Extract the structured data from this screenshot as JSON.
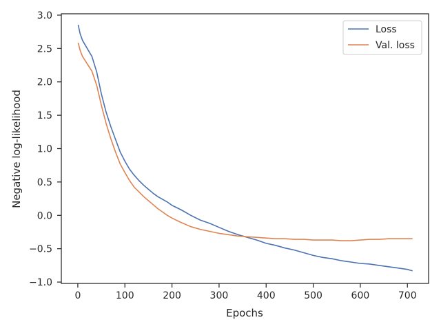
{
  "chart_data": {
    "type": "line",
    "xlabel": "Epochs",
    "ylabel": "Negative log-likelihood",
    "xlim": [
      -35,
      745
    ],
    "ylim": [
      -1.02,
      3.02
    ],
    "xticks": [
      0,
      100,
      200,
      300,
      400,
      500,
      600,
      700
    ],
    "yticks": [
      -1.0,
      -0.5,
      0.0,
      0.5,
      1.0,
      1.5,
      2.0,
      2.5,
      3.0
    ],
    "xtick_labels": [
      "0",
      "100",
      "200",
      "300",
      "400",
      "500",
      "600",
      "700"
    ],
    "ytick_labels": [
      "−1.0",
      "−0.5",
      "0.0",
      "0.5",
      "1.0",
      "1.5",
      "2.0",
      "2.5",
      "3.0"
    ],
    "grid": false,
    "legend_position": "top-right",
    "series": [
      {
        "name": "Loss",
        "color": "#4c72b0",
        "x": [
          1,
          5,
          10,
          20,
          30,
          40,
          50,
          60,
          70,
          80,
          90,
          100,
          110,
          120,
          130,
          140,
          150,
          160,
          170,
          180,
          190,
          200,
          220,
          240,
          260,
          280,
          300,
          320,
          340,
          360,
          380,
          400,
          420,
          440,
          460,
          480,
          500,
          520,
          540,
          560,
          580,
          600,
          620,
          640,
          660,
          680,
          700,
          710
        ],
        "y": [
          2.85,
          2.72,
          2.62,
          2.5,
          2.38,
          2.15,
          1.82,
          1.55,
          1.33,
          1.14,
          0.95,
          0.81,
          0.69,
          0.6,
          0.52,
          0.45,
          0.39,
          0.33,
          0.28,
          0.24,
          0.2,
          0.15,
          0.08,
          0.0,
          -0.07,
          -0.12,
          -0.18,
          -0.24,
          -0.29,
          -0.33,
          -0.37,
          -0.42,
          -0.45,
          -0.49,
          -0.52,
          -0.56,
          -0.6,
          -0.63,
          -0.65,
          -0.68,
          -0.7,
          -0.72,
          -0.73,
          -0.75,
          -0.77,
          -0.79,
          -0.81,
          -0.83
        ]
      },
      {
        "name": "Val. loss",
        "color": "#dd8452",
        "x": [
          1,
          5,
          10,
          20,
          30,
          40,
          50,
          60,
          70,
          80,
          90,
          100,
          110,
          120,
          130,
          140,
          150,
          160,
          170,
          180,
          190,
          200,
          220,
          240,
          260,
          280,
          300,
          320,
          340,
          360,
          380,
          400,
          420,
          440,
          460,
          480,
          500,
          520,
          540,
          560,
          580,
          600,
          620,
          640,
          660,
          680,
          700,
          710
        ],
        "y": [
          2.58,
          2.47,
          2.38,
          2.27,
          2.16,
          1.95,
          1.65,
          1.38,
          1.15,
          0.95,
          0.77,
          0.64,
          0.52,
          0.42,
          0.35,
          0.28,
          0.22,
          0.16,
          0.1,
          0.05,
          0.0,
          -0.04,
          -0.11,
          -0.17,
          -0.21,
          -0.24,
          -0.27,
          -0.29,
          -0.31,
          -0.32,
          -0.33,
          -0.34,
          -0.35,
          -0.35,
          -0.36,
          -0.36,
          -0.37,
          -0.37,
          -0.37,
          -0.38,
          -0.38,
          -0.37,
          -0.36,
          -0.36,
          -0.35,
          -0.35,
          -0.35,
          -0.35
        ]
      }
    ]
  }
}
